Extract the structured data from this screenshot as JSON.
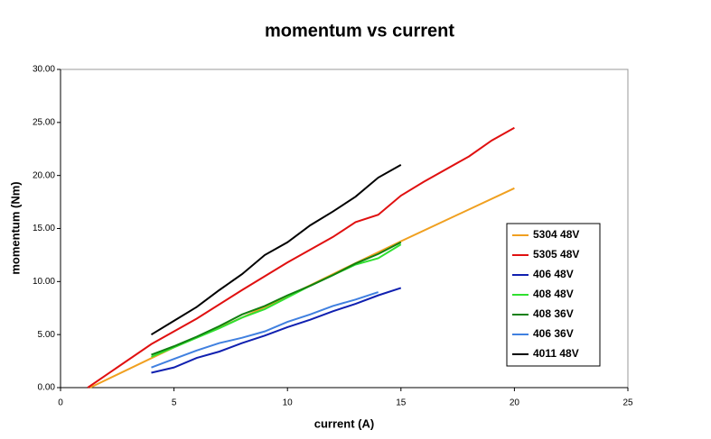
{
  "chart_data": {
    "type": "line",
    "title": "momentum vs current",
    "x_label": "current (A)",
    "y_label": "momentum (Nm)",
    "xlim": [
      0,
      25
    ],
    "xticks": [
      0,
      5,
      10,
      15,
      20,
      25
    ],
    "ylim": [
      0,
      30
    ],
    "yticks": [
      {
        "value": 0,
        "label": "0.00"
      },
      {
        "value": 5,
        "label": "5.00"
      },
      {
        "value": 10,
        "label": "10.00"
      },
      {
        "value": 15,
        "label": "15.00"
      },
      {
        "value": 20,
        "label": "20.00"
      },
      {
        "value": 25,
        "label": "25.00"
      },
      {
        "value": 30,
        "label": "30.00"
      }
    ],
    "grid": false,
    "legend": "right",
    "series": [
      {
        "name": "5304 48V",
        "color": "#f0a020",
        "x": [
          1.3,
          5,
          8,
          10,
          12,
          15,
          20
        ],
        "values": [
          0,
          3.8,
          6.6,
          8.6,
          10.7,
          13.8,
          18.8
        ]
      },
      {
        "name": "5305 48V",
        "color": "#e01010",
        "x": [
          1.2,
          4,
          6,
          8,
          10,
          12,
          13,
          14,
          15,
          16,
          18,
          19,
          20
        ],
        "values": [
          0,
          4.1,
          6.5,
          9.2,
          11.8,
          14.2,
          15.6,
          16.3,
          18.1,
          19.4,
          21.8,
          23.3,
          24.5
        ]
      },
      {
        "name": "406 48V",
        "color": "#1020b0",
        "x": [
          4,
          5,
          6,
          7,
          8,
          9,
          10,
          11,
          12,
          13,
          14,
          15
        ],
        "values": [
          1.4,
          1.9,
          2.8,
          3.4,
          4.2,
          4.9,
          5.7,
          6.4,
          7.2,
          7.9,
          8.7,
          9.4
        ]
      },
      {
        "name": "408 48V",
        "color": "#30e030",
        "x": [
          4,
          5,
          6,
          7,
          8,
          9,
          10,
          11,
          12,
          13,
          14,
          15
        ],
        "values": [
          2.9,
          3.8,
          4.7,
          5.6,
          6.6,
          7.4,
          8.5,
          9.6,
          10.6,
          11.6,
          12.2,
          13.5
        ]
      },
      {
        "name": "408 36V",
        "color": "#108010",
        "x": [
          4,
          5,
          6,
          7,
          8,
          9,
          10,
          11,
          12,
          13,
          14,
          15
        ],
        "values": [
          3.1,
          3.9,
          4.8,
          5.8,
          6.9,
          7.7,
          8.7,
          9.6,
          10.6,
          11.7,
          12.6,
          13.7
        ]
      },
      {
        "name": "406 36V",
        "color": "#4080e0",
        "x": [
          4,
          5,
          6,
          7,
          8,
          9,
          10,
          11,
          12,
          13,
          14
        ],
        "values": [
          1.9,
          2.7,
          3.5,
          4.2,
          4.7,
          5.3,
          6.2,
          6.9,
          7.7,
          8.3,
          9.0
        ]
      },
      {
        "name": "4011 48V",
        "color": "#000000",
        "x": [
          4,
          5,
          6,
          7,
          8,
          9,
          10,
          11,
          12,
          13,
          14,
          15
        ],
        "values": [
          5.0,
          6.3,
          7.6,
          9.2,
          10.7,
          12.5,
          13.7,
          15.3,
          16.6,
          18.0,
          19.8,
          21.0
        ]
      }
    ]
  }
}
